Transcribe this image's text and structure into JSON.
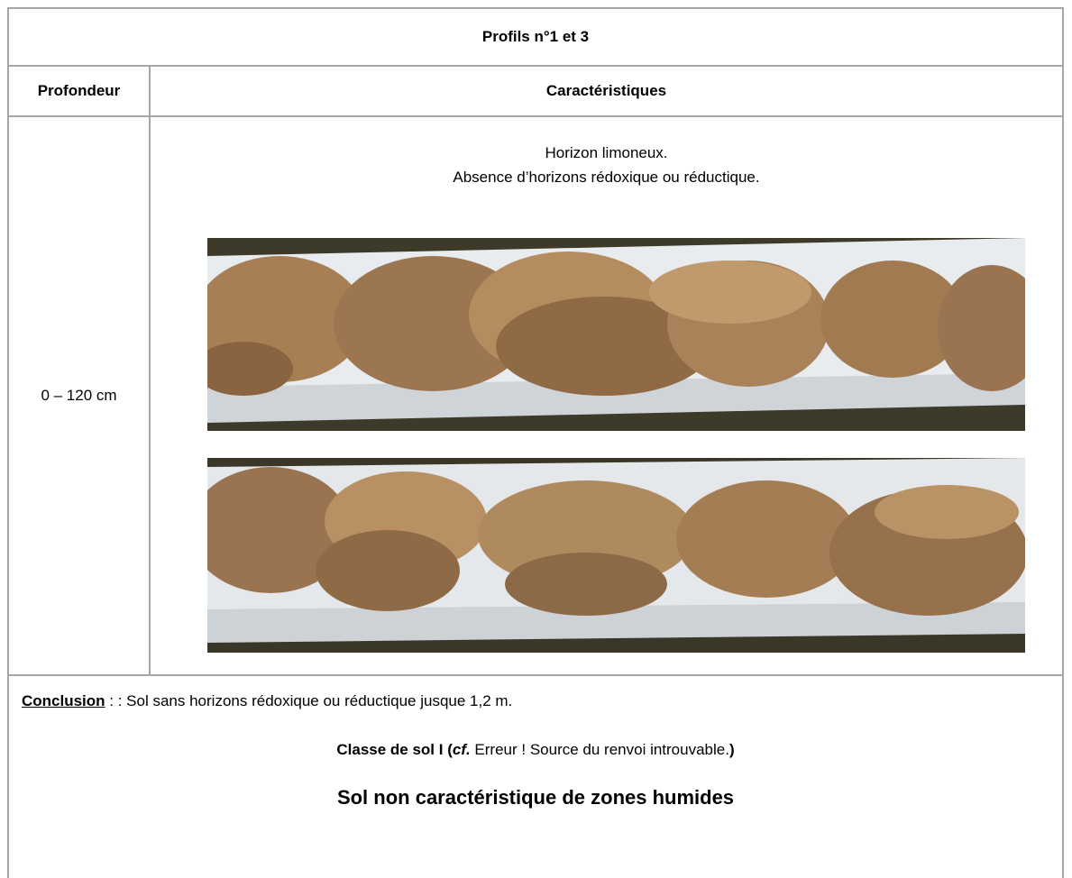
{
  "table": {
    "title": "Profils n°1 et 3",
    "headers": [
      "Profondeur",
      "Caractéristiques"
    ],
    "rows": [
      {
        "depth": "0 – 120 cm",
        "lines": [
          "Horizon limoneux.",
          "Absence d’horizons rédoxique ou réductique."
        ]
      }
    ]
  },
  "conclusion": {
    "label": "Conclusion",
    "text": " : : Sol sans horizons rédoxique ou réductique jusque 1,2 m.",
    "class_parts": [
      "Classe de sol I (",
      "cf.",
      " Erreur ! Source du renvoi introuvable.",
      ")"
    ],
    "verdict": "Sol non caractéristique de zones humides"
  }
}
